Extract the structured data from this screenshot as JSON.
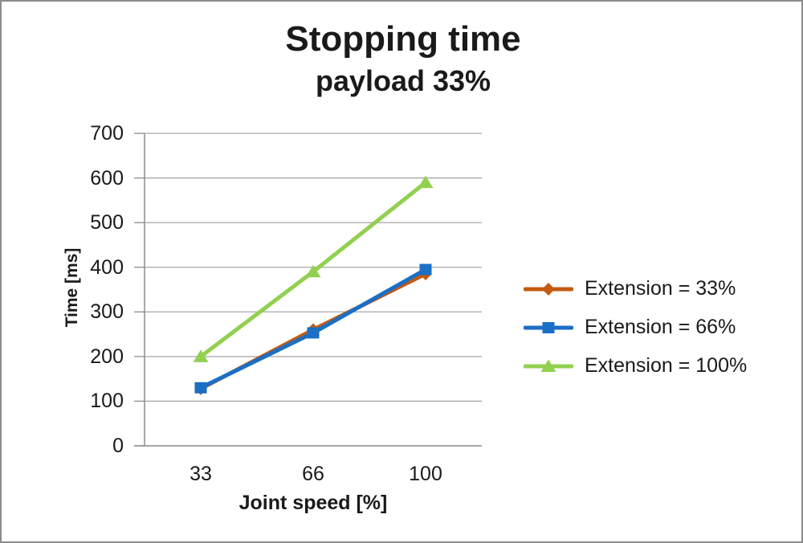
{
  "title": "Stopping time",
  "subtitle": "payload 33%",
  "chart_data": {
    "type": "line",
    "title": "Stopping time",
    "subtitle": "payload 33%",
    "xlabel": "Joint speed [%]",
    "ylabel": "Time [ms]",
    "categories": [
      "33",
      "66",
      "100"
    ],
    "yticks": [
      0,
      100,
      200,
      300,
      400,
      500,
      600,
      700
    ],
    "ylim": [
      0,
      700
    ],
    "grid": "horizontal",
    "legend_position": "right",
    "series": [
      {
        "name": "Extension = 33%",
        "color": "#C55A11",
        "marker": "diamond",
        "values": [
          128,
          260,
          385
        ]
      },
      {
        "name": "Extension = 66%",
        "color": "#1B6FC5",
        "marker": "square",
        "values": [
          130,
          253,
          395
        ]
      },
      {
        "name": "Extension = 100%",
        "color": "#92D050",
        "marker": "triangle",
        "values": [
          200,
          390,
          590
        ]
      }
    ],
    "colors": {
      "gridline": "#A6A6A6",
      "axis": "#8C8C8C",
      "text": "#1A1A1A"
    }
  }
}
